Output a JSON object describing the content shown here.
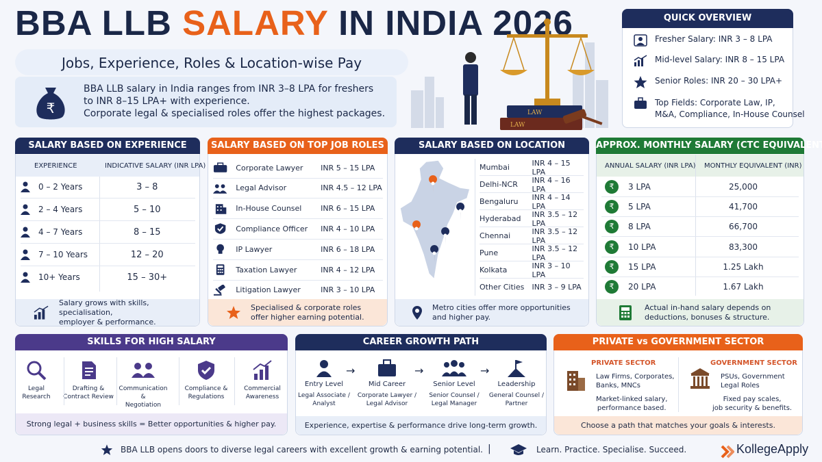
{
  "header": {
    "title_main": "BBA LLB ",
    "title_accent": "SALARY",
    "title_tail": " IN INDIA 2026",
    "subtitle": "Jobs, Experience, Roles & Location-wise Pay",
    "intro_line1": "BBA LLB salary in India ranges from INR 3–8 LPA for freshers",
    "intro_line2": "to INR 8–15 LPA+ with experience.",
    "intro_line3": "Corporate legal & specialised roles offer the highest packages."
  },
  "illustration": {
    "book_label_1": "LAW",
    "book_label_2": "LAW"
  },
  "quick_overview": {
    "title": "QUICK OVERVIEW",
    "items": [
      {
        "text": "Fresher Salary: INR 3 – 8 LPA",
        "icon": "person-icon"
      },
      {
        "text": "Mid-level Salary: INR 8 – 15 LPA",
        "icon": "growth-chart-icon"
      },
      {
        "text": "Senior Roles: INR 20 – 30 LPA+",
        "icon": "star-icon"
      },
      {
        "text": "Top Fields: Corporate Law, IP,",
        "text2": "M&A, Compliance, In-House Counsel",
        "icon": "briefcase-icon"
      }
    ]
  },
  "experience": {
    "title": "SALARY BASED ON EXPERIENCE",
    "col1": "EXPERIENCE",
    "col2": "INDICATIVE SALARY (INR LPA)",
    "rows": [
      {
        "exp": "0 – 2 Years",
        "salary": "3 – 8"
      },
      {
        "exp": "2 – 4 Years",
        "salary": "5 – 10"
      },
      {
        "exp": "4 – 7 Years",
        "salary": "8 – 15"
      },
      {
        "exp": "7 – 10 Years",
        "salary": "12 – 20"
      },
      {
        "exp": "10+ Years",
        "salary": "15 – 30+"
      }
    ],
    "footer_line1": "Salary grows with skills, specialisation,",
    "footer_line2": "employer & performance."
  },
  "roles": {
    "title": "SALARY BASED ON TOP JOB ROLES",
    "rows": [
      {
        "role": "Corporate Lawyer",
        "salary": "INR 5 – 15 LPA",
        "icon": "briefcase-icon"
      },
      {
        "role": "Legal Advisor",
        "salary": "INR 4.5 – 12 LPA",
        "icon": "people-icon"
      },
      {
        "role": "In-House Counsel",
        "salary": "INR 6 – 15 LPA",
        "icon": "building-icon"
      },
      {
        "role": "Compliance Officer",
        "salary": "INR 4 – 10 LPA",
        "icon": "shield-icon"
      },
      {
        "role": "IP Lawyer",
        "salary": "INR 6 – 18 LPA",
        "icon": "bulb-icon"
      },
      {
        "role": "Taxation Lawyer",
        "salary": "INR 4 – 12 LPA",
        "icon": "calculator-icon"
      },
      {
        "role": "Litigation Lawyer",
        "salary": "INR 3 – 10 LPA",
        "icon": "gavel-icon"
      }
    ],
    "footer_line1": "Specialised & corporate roles",
    "footer_line2": "offer higher earning potential."
  },
  "location": {
    "title": "SALARY BASED ON LOCATION",
    "rows": [
      {
        "city": "Mumbai",
        "salary": "INR 4 – 15 LPA"
      },
      {
        "city": "Delhi-NCR",
        "salary": "INR 4 – 16 LPA"
      },
      {
        "city": "Bengaluru",
        "salary": "INR 4 – 14 LPA"
      },
      {
        "city": "Hyderabad",
        "salary": "INR 3.5 – 12 LPA"
      },
      {
        "city": "Chennai",
        "salary": "INR 3.5 – 12 LPA"
      },
      {
        "city": "Pune",
        "salary": "INR 3.5 – 12 LPA"
      },
      {
        "city": "Kolkata",
        "salary": "INR 3 – 10 LPA"
      },
      {
        "city": "Other Cities",
        "salary": "INR 3 – 9 LPA"
      }
    ],
    "footer_line1": "Metro cities offer more opportunities",
    "footer_line2": "and higher pay."
  },
  "monthly": {
    "title": "APPROX. MONTHLY SALARY (CTC EQUIVALENT)",
    "col1": "ANNUAL SALARY (INR LPA)",
    "col2": "MONTHLY EQUIVALENT (INR)",
    "rupee_symbol": "₹",
    "rows": [
      {
        "annual": "3 LPA",
        "monthly": "25,000"
      },
      {
        "annual": "5 LPA",
        "monthly": "41,700"
      },
      {
        "annual": "8 LPA",
        "monthly": "66,700"
      },
      {
        "annual": "10 LPA",
        "monthly": "83,300"
      },
      {
        "annual": "15 LPA",
        "monthly": "1.25 Lakh"
      },
      {
        "annual": "20 LPA",
        "monthly": "1.67 Lakh"
      }
    ],
    "footer_line1": "Actual in-hand salary depends on",
    "footer_line2": "deductions, bonuses & structure."
  },
  "skills": {
    "title": "SKILLS FOR HIGH SALARY",
    "items": [
      {
        "l1": "Legal",
        "l2": "Research"
      },
      {
        "l1": "Drafting &",
        "l2": "Contract Review"
      },
      {
        "l1": "Communication &",
        "l2": "Negotiation"
      },
      {
        "l1": "Compliance &",
        "l2": "Regulations"
      },
      {
        "l1": "Commercial",
        "l2": "Awareness"
      }
    ],
    "footer": "Strong legal + business skills = Better opportunities & higher pay."
  },
  "career": {
    "title": "CAREER GROWTH PATH",
    "arrow": "→",
    "steps": [
      {
        "stage": "Entry Level",
        "d1": "Legal Associate /",
        "d2": "Analyst"
      },
      {
        "stage": "Mid Career",
        "d1": "Corporate Lawyer /",
        "d2": "Legal Advisor"
      },
      {
        "stage": "Senior Level",
        "d1": "Senior Counsel /",
        "d2": "Legal Manager"
      },
      {
        "stage": "Leadership",
        "d1": "General Counsel /",
        "d2": "Partner"
      }
    ],
    "footer": "Experience, expertise & performance drive long-term growth."
  },
  "sector": {
    "title": "PRIVATE vs GOVERNMENT SECTOR",
    "private_head": "PRIVATE SECTOR",
    "private_l1": "Law Firms, Corporates,",
    "private_l2": "Banks, MNCs",
    "private_l3": "Market-linked salary,",
    "private_l4": "performance based.",
    "gov_head": "GOVERNMENT SECTOR",
    "gov_l1": "PSUs, Government",
    "gov_l2": "Legal Roles",
    "gov_l3": "Fixed pay scales,",
    "gov_l4": "job security & benefits.",
    "footer": "Choose a path that matches your goals & interests."
  },
  "footer": {
    "left": "BBA LLB opens doors to diverse legal careers with excellent growth & earning potential.",
    "right": "Learn. Practice. Specialise. Succeed.",
    "brand": "KollegeApply",
    "divider": "|"
  },
  "colors": {
    "navy": "#1e2d5c",
    "orange": "#e8611a",
    "green": "#1f7a36",
    "purple": "#4b3a8a"
  }
}
